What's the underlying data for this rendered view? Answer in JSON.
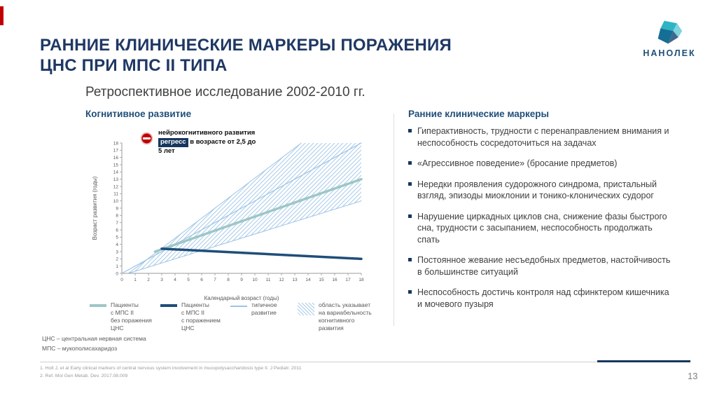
{
  "slide": {
    "title_line1": "РАННИЕ КЛИНИЧЕСКИЕ МАРКЕРЫ ПОРАЖЕНИЯ",
    "title_line2": "ЦНС ПРИ МПС II ТИПА",
    "subtitle": "Ретроспективное исследование 2002-2010 гг.",
    "page_number": "13",
    "accent_color": "#C00000",
    "title_color": "#1F3864"
  },
  "logo": {
    "brand": "НАНОЛЕК",
    "color": "#1F4E79",
    "icon": "nanolek-gem-icon"
  },
  "left": {
    "heading": "Когнитивное развитие",
    "callout": {
      "icon": "minus-icon",
      "prefix": "нейрокогнитивного развития",
      "highlight": "регресс",
      "suffix": "в возрасте от 2,5 до 5 лет"
    },
    "legend": [
      {
        "swatch": "teal-line",
        "label": "Пациенты\nс МПС II\nбез поражения\nЦНС"
      },
      {
        "swatch": "navy-line",
        "label": "Пациенты\nс МПС II\nс поражением\nЦНС"
      },
      {
        "swatch": "thin-line",
        "label": "типичное\nразвитие"
      },
      {
        "swatch": "hatch",
        "label": "область указывает\nна вариабельность\nкогнитивного\nразвития"
      }
    ],
    "abbreviations": [
      "ЦНС – центральная нервная система",
      "МПС – мукополисахаридоз"
    ]
  },
  "right": {
    "heading": "Ранние клинические маркеры",
    "bullets": [
      "Гиперактивность, трудности с перенаправлением внимания и неспособность сосредоточиться на задачах",
      "«Агрессивное поведение» (бросание предметов)",
      "Нередки проявления судорожного синдрома, пристальный взгляд, эпизоды миоклонии и тонико-клонических судорог",
      "Нарушение циркадных циклов сна, снижение фазы быстрого сна, трудности с засыпанием, неспособность продолжать спать",
      "Постоянное жевание несъедобных предметов, настойчивость в большинстве ситуаций",
      "Неспособность достичь контроля над сфинктером кишечника и мочевого пузыря"
    ]
  },
  "footnotes": [
    "1. Holt J, et al Early clinical markers of central nervous system involvement in mucopolysaccharidosis type II. J Pediatr. 2011",
    "2. Ref. Mol Gen Metab. Dev. 2017.08.009"
  ],
  "chart_data": {
    "type": "line",
    "title": "Когнитивное развитие",
    "xlabel": "Календарный возраст (годы)",
    "ylabel": "Возраст развития (годы)",
    "xlim": [
      0,
      18
    ],
    "ylim": [
      0,
      18
    ],
    "xticks": [
      0,
      1,
      2,
      3,
      4,
      5,
      6,
      7,
      8,
      9,
      10,
      11,
      12,
      13,
      14,
      15,
      16,
      17,
      18
    ],
    "yticks": [
      0,
      1,
      2,
      3,
      4,
      5,
      6,
      7,
      8,
      9,
      10,
      11,
      12,
      13,
      14,
      15,
      16,
      17,
      18
    ],
    "grid": false,
    "legend_position": "bottom",
    "series": [
      {
        "id": "typical",
        "name": "типичное развитие",
        "points": [
          [
            0,
            0
          ],
          [
            18,
            18
          ]
        ],
        "color": "#9DC3E6",
        "width": 1.2
      },
      {
        "id": "no-cns",
        "name": "Пациенты с МПС II без поражения ЦНС",
        "points": [
          [
            2.5,
            3
          ],
          [
            18,
            13
          ]
        ],
        "color": "#9EC6C6",
        "width": 3.5
      },
      {
        "id": "cns",
        "name": "Пациенты с МПС II с поражением ЦНС",
        "points": [
          [
            3,
            3.4
          ],
          [
            18,
            2
          ]
        ],
        "color": "#1F4E79",
        "width": 3.5
      }
    ],
    "band": {
      "name": "область указывает на вариабельность когнитивного развития",
      "polygon": [
        [
          0.5,
          0
        ],
        [
          13.5,
          18
        ],
        [
          18,
          18
        ],
        [
          18,
          10
        ]
      ],
      "edges": [
        [
          [
            0.5,
            0
          ],
          [
            13.5,
            18
          ]
        ],
        [
          [
            0.5,
            0
          ],
          [
            18,
            10
          ]
        ]
      ],
      "hatch_color": "#A9CBE8",
      "edge_color": "#9DC3E6"
    },
    "annotation": "регресс нейрокогнитивного развития в возрасте от 2,5 до 5 лет"
  }
}
